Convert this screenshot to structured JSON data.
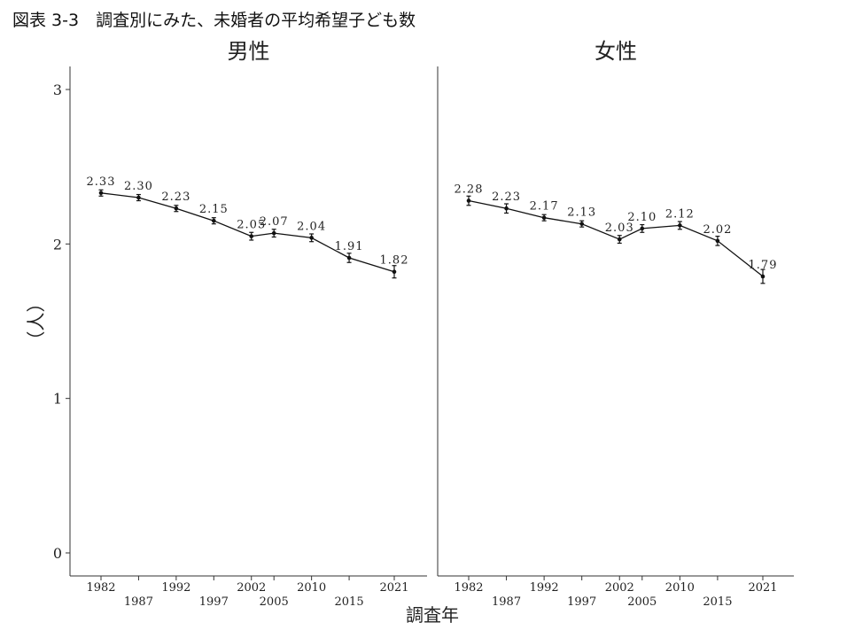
{
  "title": "図表 3-3　調査別にみた、未婚者の平均希望子ども数",
  "chart_data": {
    "type": "line",
    "xlabel": "調査年",
    "ylabel": "（人）",
    "ylim": [
      0,
      3
    ],
    "yticks": [
      0,
      1,
      2,
      3
    ],
    "grid": false,
    "x": [
      1982,
      1987,
      1992,
      1997,
      2002,
      2005,
      2010,
      2015,
      2021
    ],
    "x_tick_labels": [
      "1982",
      "1987",
      "1992",
      "1997",
      "2002",
      "2005",
      "2010",
      "2015",
      "2021"
    ],
    "error_bars": true,
    "panels": [
      {
        "name": "男性",
        "values": [
          2.33,
          2.3,
          2.23,
          2.15,
          2.05,
          2.07,
          2.04,
          1.91,
          1.82
        ],
        "labels": [
          "2.33",
          "2.30",
          "2.23",
          "2.15",
          "2.05",
          "2.07",
          "2.04",
          "1.91",
          "1.82"
        ],
        "errors": [
          0.02,
          0.02,
          0.02,
          0.02,
          0.025,
          0.025,
          0.025,
          0.03,
          0.04
        ]
      },
      {
        "name": "女性",
        "values": [
          2.28,
          2.23,
          2.17,
          2.13,
          2.03,
          2.1,
          2.12,
          2.02,
          1.79
        ],
        "labels": [
          "2.28",
          "2.23",
          "2.17",
          "2.13",
          "2.03",
          "2.10",
          "2.12",
          "2.02",
          "1.79"
        ],
        "errors": [
          0.03,
          0.03,
          0.02,
          0.02,
          0.025,
          0.025,
          0.025,
          0.03,
          0.045
        ]
      }
    ]
  }
}
